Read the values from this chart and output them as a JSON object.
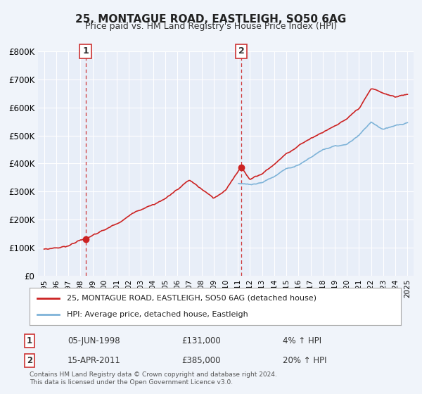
{
  "title": "25, MONTAGUE ROAD, EASTLEIGH, SO50 6AG",
  "subtitle": "Price paid vs. HM Land Registry's House Price Index (HPI)",
  "bg_color": "#f0f4fa",
  "plot_bg_color": "#e8eef8",
  "legend_label_red": "25, MONTAGUE ROAD, EASTLEIGH, SO50 6AG (detached house)",
  "legend_label_blue": "HPI: Average price, detached house, Eastleigh",
  "marker1_date": 1998.42,
  "marker1_value": 131000,
  "marker1_label": "1",
  "marker1_text": "05-JUN-1998",
  "marker1_price": "£131,000",
  "marker1_hpi": "4% ↑ HPI",
  "marker2_date": 2011.29,
  "marker2_value": 385000,
  "marker2_label": "2",
  "marker2_text": "15-APR-2011",
  "marker2_price": "£385,000",
  "marker2_hpi": "20% ↑ HPI",
  "footer": "Contains HM Land Registry data © Crown copyright and database right 2024.\nThis data is licensed under the Open Government Licence v3.0.",
  "ylim": [
    0,
    800000
  ],
  "xlim_start": 1994.5,
  "xlim_end": 2025.5,
  "yticks": [
    0,
    100000,
    200000,
    300000,
    400000,
    500000,
    600000,
    700000,
    800000
  ],
  "ytick_labels": [
    "£0",
    "£100K",
    "£200K",
    "£300K",
    "£400K",
    "£500K",
    "£600K",
    "£700K",
    "£800K"
  ]
}
